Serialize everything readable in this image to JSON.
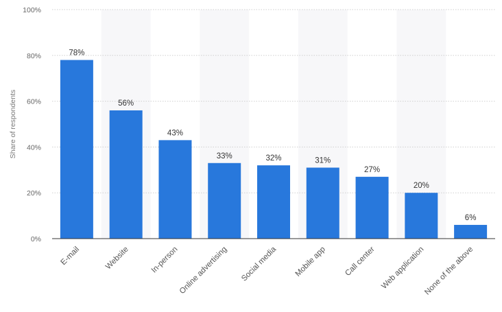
{
  "chart_data": {
    "type": "bar",
    "categories": [
      "E-mail",
      "Website",
      "In-person",
      "Online advertising",
      "Social media",
      "Mobile app",
      "Call center",
      "Web application",
      "None of the above"
    ],
    "values": [
      78,
      56,
      43,
      33,
      32,
      31,
      27,
      20,
      6
    ],
    "data_labels": [
      "78%",
      "56%",
      "43%",
      "33%",
      "32%",
      "31%",
      "27%",
      "20%",
      "6%"
    ],
    "y_ticks": [
      0,
      20,
      40,
      60,
      80,
      100
    ],
    "y_tick_labels": [
      "0%",
      "20%",
      "40%",
      "60%",
      "80%",
      "100%"
    ],
    "ylabel": "Share of respondents",
    "xlabel": "",
    "ylim": [
      0,
      100
    ],
    "grid": true,
    "legend": "none",
    "colors": {
      "bar": "#2878dc",
      "band": "#f7f7f9",
      "grid": "#cfcfcf",
      "axis": "#333333"
    }
  }
}
